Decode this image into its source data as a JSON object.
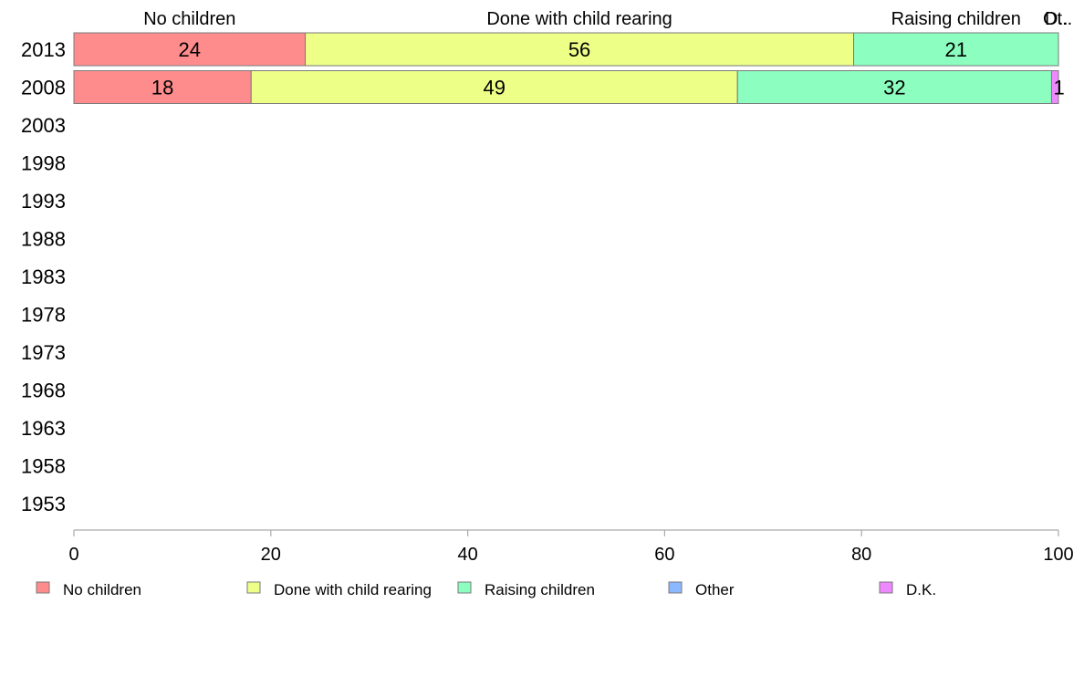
{
  "chart_data": {
    "type": "bar",
    "orientation": "horizontal",
    "stacked": true,
    "categories": [
      "2013",
      "2008",
      "2003",
      "1998",
      "1993",
      "1988",
      "1983",
      "1978",
      "1973",
      "1968",
      "1963",
      "1958",
      "1953"
    ],
    "series": [
      {
        "name": "No children",
        "color": "#ff8c8c",
        "values": [
          23.5,
          18,
          null,
          null,
          null,
          null,
          null,
          null,
          null,
          null,
          null,
          null,
          null
        ],
        "labels": [
          "24",
          "18",
          "",
          "",
          "",
          "",
          "",
          "",
          "",
          "",
          "",
          "",
          ""
        ]
      },
      {
        "name": "Done with child rearing",
        "color": "#eeff88",
        "values": [
          55.7,
          49.4,
          null,
          null,
          null,
          null,
          null,
          null,
          null,
          null,
          null,
          null,
          null
        ],
        "labels": [
          "56",
          "49",
          "",
          "",
          "",
          "",
          "",
          "",
          "",
          "",
          "",
          "",
          ""
        ]
      },
      {
        "name": "Raising children",
        "color": "#8cffc0",
        "values": [
          20.8,
          31.9,
          null,
          null,
          null,
          null,
          null,
          null,
          null,
          null,
          null,
          null,
          null
        ],
        "labels": [
          "21",
          "32",
          "",
          "",
          "",
          "",
          "",
          "",
          "",
          "",
          "",
          "",
          ""
        ]
      },
      {
        "name": "Other",
        "color": "#8cb8ff",
        "values": [
          0,
          0,
          null,
          null,
          null,
          null,
          null,
          null,
          null,
          null,
          null,
          null,
          null
        ],
        "labels": [
          "",
          "",
          "",
          "",
          "",
          "",
          "",
          "",
          "",
          "",
          "",
          "",
          ""
        ]
      },
      {
        "name": "D.K.",
        "color": "#ee88ff",
        "values": [
          0,
          0.7,
          null,
          null,
          null,
          null,
          null,
          null,
          null,
          null,
          null,
          null,
          null
        ],
        "labels": [
          "",
          "1",
          "",
          "",
          "",
          "",
          "",
          "",
          "",
          "",
          "",
          "",
          ""
        ]
      }
    ],
    "top_labels": [
      "No children",
      "Done with child rearing",
      "Raising children",
      "Ot..",
      "D.."
    ],
    "xlim": [
      0,
      100
    ],
    "xticks": [
      "0",
      "20",
      "40",
      "60",
      "80",
      "100"
    ],
    "grid": false,
    "legend_position": "bottom",
    "legend": [
      "No children",
      "Done with child rearing",
      "Raising children",
      "Other",
      "D.K."
    ]
  }
}
